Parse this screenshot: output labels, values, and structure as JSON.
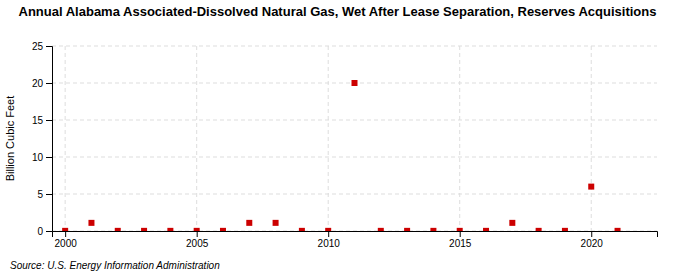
{
  "chart_data": {
    "type": "scatter",
    "title": "Annual Alabama Associated-Dissolved Natural Gas, Wet After Lease Separation, Reserves Acquisitions",
    "ylabel": "Billion Cubic Feet",
    "annotations": [
      "Source: U.S. Energy Information Administration"
    ],
    "x": [
      2000,
      2001,
      2002,
      2003,
      2004,
      2005,
      2006,
      2007,
      2008,
      2009,
      2010,
      2011,
      2012,
      2013,
      2014,
      2015,
      2016,
      2017,
      2018,
      2019,
      2020,
      2021
    ],
    "values": [
      0.02,
      1.1,
      0.02,
      0.02,
      0.02,
      0.02,
      0.02,
      1.1,
      1.1,
      0.02,
      0.02,
      20.0,
      0.02,
      0.02,
      0.02,
      0.02,
      0.02,
      1.1,
      0.02,
      0.02,
      6.0,
      0.02
    ],
    "color": "#cc0000",
    "marker": "square",
    "xlim": [
      1999.5,
      2022.5
    ],
    "xticks": [
      2000,
      2005,
      2010,
      2015,
      2020
    ],
    "ylim": [
      0,
      25
    ],
    "yticks": [
      0,
      5,
      10,
      15,
      20,
      25
    ],
    "grid": true
  }
}
